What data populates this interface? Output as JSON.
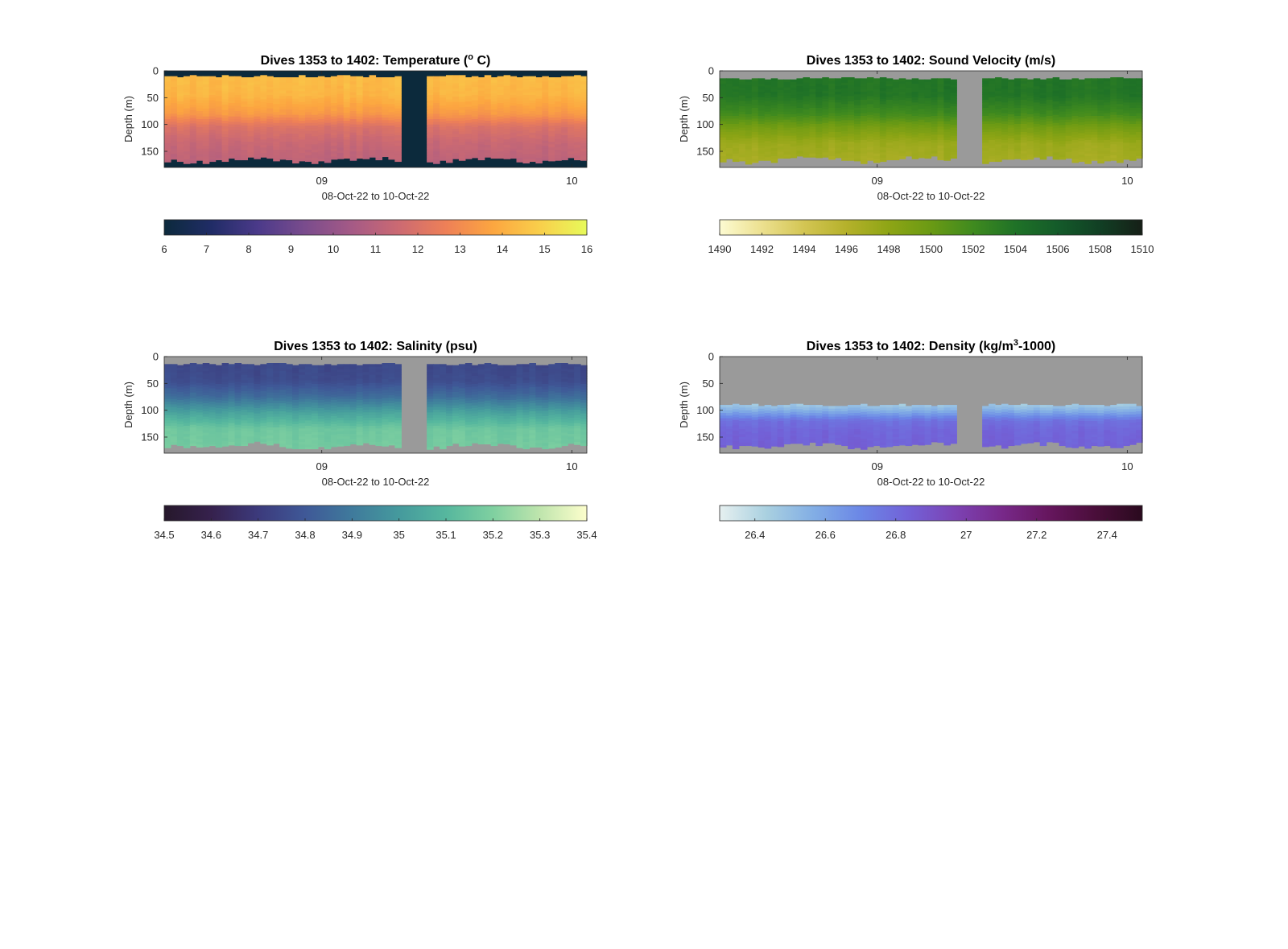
{
  "chart_data": [
    {
      "type": "heatmap",
      "title": "Dives 1353 to 1402: Temperature (",
      "title_sup": "o",
      "title_end": " C)",
      "xlabel": "08-Oct-22 to 10-Oct-22",
      "ylabel": "Depth (m)",
      "x_ticks": [
        {
          "x": 9.0,
          "label": "09"
        },
        {
          "x": 10.0,
          "label": "10"
        }
      ],
      "xlim": [
        8.37,
        10.06
      ],
      "y_ticks": [
        0,
        50,
        100,
        150
      ],
      "ylim": [
        0,
        180
      ],
      "gap": [
        9.32,
        9.42
      ],
      "nodata_color": "#0c2a3c",
      "colorbar": {
        "ticks": [
          "6",
          "7",
          "8",
          "9",
          "10",
          "11",
          "12",
          "13",
          "14",
          "15",
          "16"
        ],
        "range": [
          6,
          16
        ],
        "colors": [
          "#0c2a3c",
          "#202c66",
          "#4b3a8a",
          "#7a4c8d",
          "#a55a86",
          "#cc6a72",
          "#ee8057",
          "#fca640",
          "#f9cf4b",
          "#e7fa5a"
        ]
      },
      "profile": [
        [
          0,
          14.4
        ],
        [
          45,
          14.2
        ],
        [
          80,
          13.4
        ],
        [
          105,
          12.0
        ],
        [
          135,
          11.4
        ],
        [
          180,
          11.0
        ]
      ],
      "top_depth": 8,
      "bottom_depth": 162
    },
    {
      "type": "heatmap",
      "title": "Dives 1353 to 1402: Sound Velocity (m/s)",
      "xlabel": "08-Oct-22 to 10-Oct-22",
      "ylabel": "Depth (m)",
      "x_ticks": [
        {
          "x": 9.0,
          "label": "09"
        },
        {
          "x": 10.0,
          "label": "10"
        }
      ],
      "xlim": [
        8.37,
        10.06
      ],
      "y_ticks": [
        0,
        50,
        100,
        150
      ],
      "ylim": [
        0,
        180
      ],
      "gap": [
        9.32,
        9.42
      ],
      "nodata_color": "#9a9a9a",
      "colorbar": {
        "ticks": [
          "1490",
          "1492",
          "1494",
          "1496",
          "1498",
          "1500",
          "1502",
          "1504",
          "1506",
          "1508",
          "1510"
        ],
        "range": [
          1490,
          1510
        ],
        "colors": [
          "#fdfbd2",
          "#ece08f",
          "#d3c553",
          "#b5b12b",
          "#8ea515",
          "#6a9a14",
          "#3f8a1f",
          "#1f7227",
          "#145b2a",
          "#113f24",
          "#161f17"
        ]
      },
      "profile": [
        [
          0,
          1503.8
        ],
        [
          45,
          1503.8
        ],
        [
          80,
          1502.0
        ],
        [
          105,
          1499.5
        ],
        [
          135,
          1497.3
        ],
        [
          180,
          1496.6
        ]
      ],
      "top_depth": 12,
      "bottom_depth": 162
    },
    {
      "type": "heatmap",
      "title": "Dives 1353 to 1402: Salinity (psu)",
      "xlabel": "08-Oct-22 to 10-Oct-22",
      "ylabel": "Depth (m)",
      "x_ticks": [
        {
          "x": 9.0,
          "label": "09"
        },
        {
          "x": 10.0,
          "label": "10"
        }
      ],
      "xlim": [
        8.37,
        10.06
      ],
      "y_ticks": [
        0,
        50,
        100,
        150
      ],
      "ylim": [
        0,
        180
      ],
      "gap": [
        9.32,
        9.42
      ],
      "nodata_color": "#9a9a9a",
      "colorbar": {
        "ticks": [
          "34.5",
          "34.6",
          "34.7",
          "34.8",
          "34.9",
          "35",
          "35.1",
          "35.2",
          "35.3",
          "35.4"
        ],
        "range": [
          34.5,
          35.4
        ],
        "colors": [
          "#26182b",
          "#36214d",
          "#3c3a7c",
          "#3f5897",
          "#3f7a9c",
          "#459a9d",
          "#56b79e",
          "#7fd0a0",
          "#bfe5ad",
          "#fdfecc"
        ]
      },
      "profile": [
        [
          0,
          34.74
        ],
        [
          45,
          34.76
        ],
        [
          75,
          34.86
        ],
        [
          105,
          35.03
        ],
        [
          135,
          35.16
        ],
        [
          180,
          35.18
        ]
      ],
      "top_depth": 12,
      "bottom_depth": 162
    },
    {
      "type": "heatmap",
      "title": "Dives 1353 to 1402: Density (kg/m",
      "title_sup": "3",
      "title_end": "-1000)",
      "xlabel": "08-Oct-22 to 10-Oct-22",
      "ylabel": "Depth (m)",
      "x_ticks": [
        {
          "x": 9.0,
          "label": "09"
        },
        {
          "x": 10.0,
          "label": "10"
        }
      ],
      "xlim": [
        8.37,
        10.06
      ],
      "y_ticks": [
        0,
        50,
        100,
        150
      ],
      "ylim": [
        0,
        180
      ],
      "gap": [
        9.32,
        9.42
      ],
      "nodata_color": "#9a9a9a",
      "colorbar": {
        "ticks": [
          "26.4",
          "26.6",
          "26.8",
          "27",
          "27.2",
          "27.4"
        ],
        "range": [
          26.3,
          27.5
        ],
        "colors": [
          "#e6f0f0",
          "#a9d0e0",
          "#82aee5",
          "#6b87e6",
          "#7262d8",
          "#7c43b4",
          "#78298a",
          "#66165e",
          "#4a0e3a",
          "#2a0a1e"
        ]
      },
      "profile": [
        [
          0,
          26.4
        ],
        [
          85,
          26.42
        ],
        [
          100,
          26.55
        ],
        [
          120,
          26.78
        ],
        [
          140,
          26.82
        ],
        [
          180,
          26.84
        ]
      ],
      "top_depth": 88,
      "bottom_depth": 162
    }
  ]
}
